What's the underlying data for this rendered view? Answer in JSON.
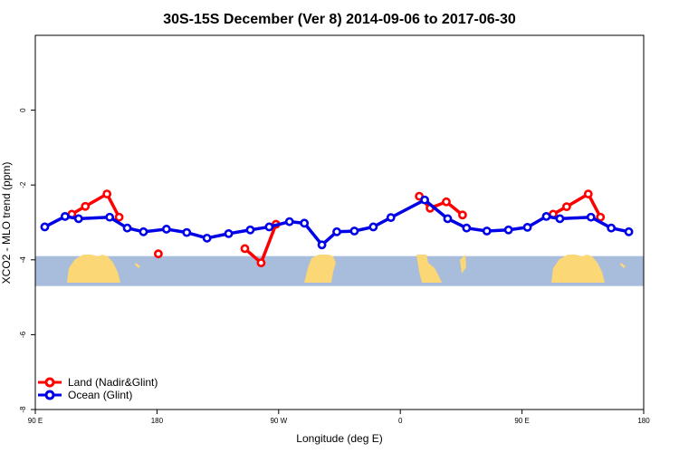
{
  "chart_data": {
    "type": "line",
    "title": "30S-15S December (Ver 8)   2014-09-06 to 2017-06-30",
    "xlabel": "Longitude (deg E)",
    "ylabel": "XCO2 - MLO trend (ppm)",
    "xlim": [
      90,
      540
    ],
    "ylim": [
      -8,
      2
    ],
    "xticks": [
      {
        "value": 90,
        "label": "90 E"
      },
      {
        "value": 180,
        "label": "180"
      },
      {
        "value": 270,
        "label": "90 W"
      },
      {
        "value": 360,
        "label": "0"
      },
      {
        "value": 450,
        "label": "90 E"
      },
      {
        "value": 540,
        "label": "180"
      }
    ],
    "yticks": [
      {
        "value": 0,
        "label": "0"
      },
      {
        "value": -2,
        "label": "-2"
      },
      {
        "value": -4,
        "label": "-4"
      },
      {
        "value": -6,
        "label": "-6"
      },
      {
        "value": -8,
        "label": "-8"
      }
    ],
    "legend_position": "bottom-left",
    "map_band": {
      "y_top": -3.9,
      "y_bottom": -4.7,
      "ocean_color": "#a8bcdc",
      "land_color": "#fbd775"
    },
    "series": [
      {
        "name": "Land (Nadir&Glint)",
        "color": "#ff0000",
        "segments": [
          [
            {
              "x": 117,
              "y": -2.78
            },
            {
              "x": 127,
              "y": -2.57
            },
            {
              "x": 143,
              "y": -2.24
            },
            {
              "x": 152,
              "y": -2.86
            }
          ],
          [
            {
              "x": 181,
              "y": -3.84
            }
          ],
          [
            {
              "x": 245,
              "y": -3.7
            },
            {
              "x": 257,
              "y": -4.08
            },
            {
              "x": 268,
              "y": -3.05
            }
          ],
          [
            {
              "x": 374,
              "y": -2.3
            },
            {
              "x": 382,
              "y": -2.62
            },
            {
              "x": 394,
              "y": -2.45
            },
            {
              "x": 406,
              "y": -2.8
            }
          ],
          [
            {
              "x": 473,
              "y": -2.78
            },
            {
              "x": 483,
              "y": -2.58
            },
            {
              "x": 499,
              "y": -2.24
            },
            {
              "x": 508,
              "y": -2.86
            }
          ]
        ]
      },
      {
        "name": "Ocean (Glint)",
        "color": "#0000e6",
        "segments": [
          [
            {
              "x": 97,
              "y": -3.12
            },
            {
              "x": 112,
              "y": -2.84
            },
            {
              "x": 122,
              "y": -2.9
            },
            {
              "x": 145,
              "y": -2.86
            },
            {
              "x": 158,
              "y": -3.15
            },
            {
              "x": 170,
              "y": -3.25
            },
            {
              "x": 187,
              "y": -3.18
            },
            {
              "x": 202,
              "y": -3.27
            },
            {
              "x": 217,
              "y": -3.42
            },
            {
              "x": 233,
              "y": -3.3
            },
            {
              "x": 249,
              "y": -3.2
            },
            {
              "x": 263,
              "y": -3.12
            },
            {
              "x": 278,
              "y": -2.98
            },
            {
              "x": 289,
              "y": -3.02
            },
            {
              "x": 302,
              "y": -3.6
            },
            {
              "x": 313,
              "y": -3.25
            },
            {
              "x": 326,
              "y": -3.23
            },
            {
              "x": 340,
              "y": -3.12
            },
            {
              "x": 353,
              "y": -2.87
            },
            {
              "x": 378,
              "y": -2.4
            },
            {
              "x": 395,
              "y": -2.9
            },
            {
              "x": 409,
              "y": -3.15
            },
            {
              "x": 424,
              "y": -3.23
            },
            {
              "x": 440,
              "y": -3.2
            },
            {
              "x": 454,
              "y": -3.13
            },
            {
              "x": 468,
              "y": -2.84
            },
            {
              "x": 478,
              "y": -2.9
            },
            {
              "x": 501,
              "y": -2.86
            },
            {
              "x": 516,
              "y": -3.15
            },
            {
              "x": 529,
              "y": -3.25
            }
          ]
        ]
      }
    ]
  }
}
